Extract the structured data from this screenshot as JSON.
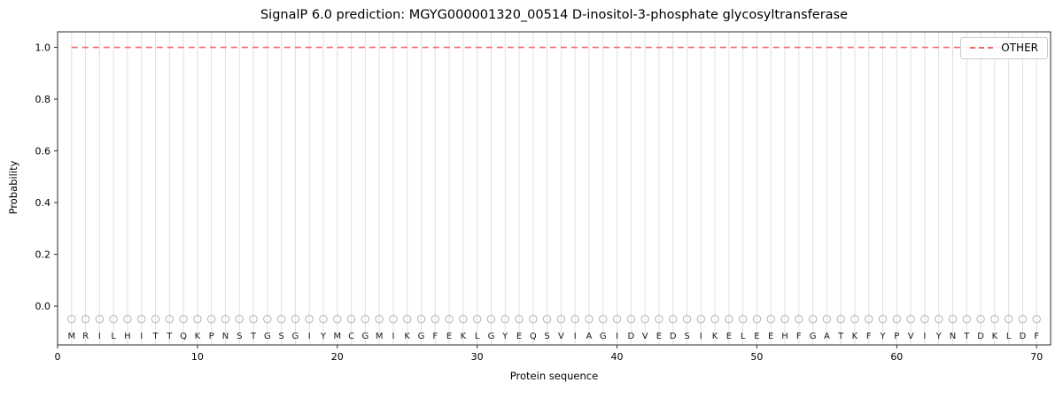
{
  "chart_data": {
    "type": "line",
    "title": "SignalP 6.0 prediction: MGYG000001320_00514 D-inositol-3-phosphate glycosyltransferase",
    "xlabel": "Protein sequence",
    "ylabel": "Probability",
    "xlim": [
      0,
      71
    ],
    "ylim": [
      -0.15,
      1.06
    ],
    "x_ticks": [
      0,
      10,
      20,
      30,
      40,
      50,
      60,
      70
    ],
    "y_ticks": [
      0.0,
      0.2,
      0.4,
      0.6,
      0.8,
      1.0
    ],
    "grid": "vertical-line-per-residue",
    "legend": {
      "position": "upper right",
      "entries": [
        {
          "label": "OTHER",
          "color": "#f06a6a",
          "style": "dashed"
        }
      ]
    },
    "sequence": "MRILHITTQKPNSTGSGIYMCGMIKGFEKLGYEQSVIAGIDVEDSIKELEEHFGATKFYPVIYNTDKLDF",
    "series": [
      {
        "name": "OTHER",
        "color": "#f06a6a",
        "style": "dashed",
        "x_start": 1,
        "values": [
          1.0,
          1.0,
          1.0,
          1.0,
          1.0,
          1.0,
          1.0,
          1.0,
          1.0,
          1.0,
          1.0,
          1.0,
          1.0,
          1.0,
          1.0,
          1.0,
          1.0,
          1.0,
          1.0,
          1.0,
          1.0,
          1.0,
          1.0,
          1.0,
          1.0,
          1.0,
          1.0,
          1.0,
          1.0,
          1.0,
          1.0,
          1.0,
          1.0,
          1.0,
          1.0,
          1.0,
          1.0,
          1.0,
          1.0,
          1.0,
          1.0,
          1.0,
          1.0,
          1.0,
          1.0,
          1.0,
          1.0,
          1.0,
          1.0,
          1.0,
          1.0,
          1.0,
          1.0,
          1.0,
          1.0,
          1.0,
          1.0,
          1.0,
          1.0,
          1.0,
          1.0,
          1.0,
          1.0,
          1.0,
          1.0,
          1.0,
          1.0,
          1.0,
          1.0,
          1.0
        ]
      }
    ],
    "residue_markers": {
      "y": -0.05,
      "symbol": "open-circle",
      "color": "#b3b3b3"
    },
    "residue_letters_y": -0.1,
    "colors": {
      "grid": "#e0e0e0",
      "axis_frame": "#2b2b2b",
      "tick_text": "#000000",
      "letter_text": "#1a1a1a"
    }
  }
}
